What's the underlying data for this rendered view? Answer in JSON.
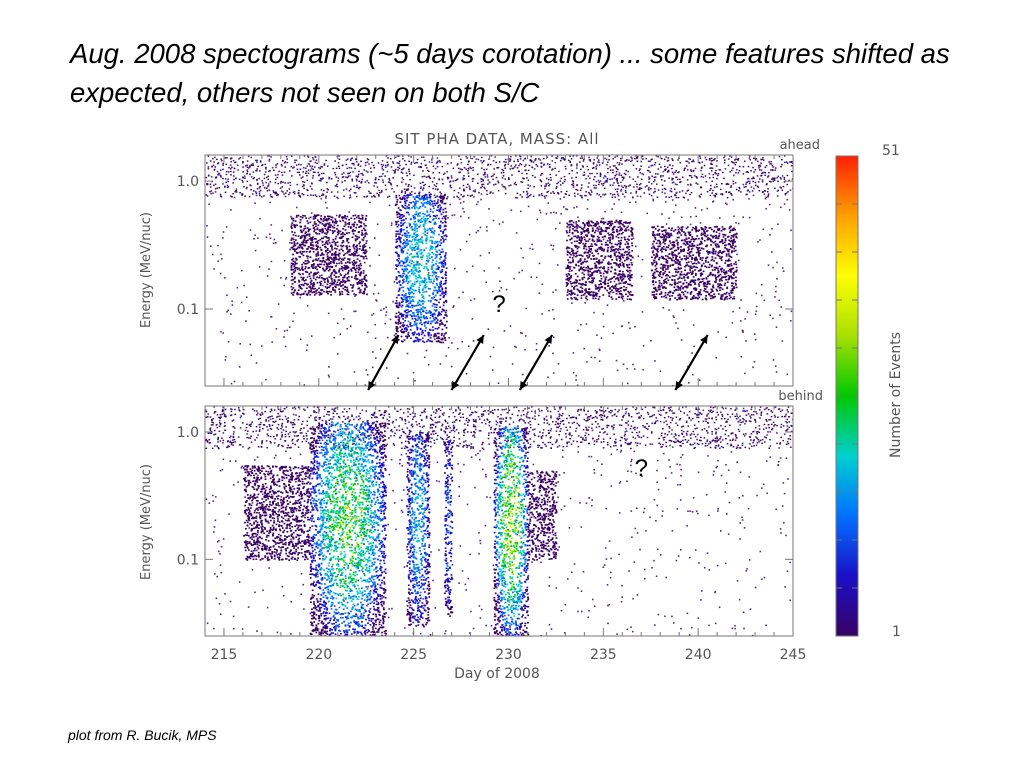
{
  "slide": {
    "title": "Aug. 2008 spectograms (~5 days corotation) ... some features shifted as expected, others not seen on both S/C",
    "caption": "plot from R. Bucik, MPS"
  },
  "chart_data": {
    "type": "heatmap",
    "title": "SIT PHA DATA, MASS: All",
    "xlabel": "Day of 2008",
    "xlim": [
      214,
      245
    ],
    "xticks": [
      "215",
      "220",
      "225",
      "230",
      "235",
      "240",
      "245"
    ],
    "colorbar": {
      "label": "Number of Events",
      "min": 1,
      "max": 51,
      "min_label": "1",
      "max_label": "51",
      "colors": [
        "#3a0064",
        "#1a10c8",
        "#0070ff",
        "#00d0d0",
        "#00c800",
        "#a8e000",
        "#ffff00",
        "#ffa000",
        "#ff2000"
      ]
    },
    "panels": [
      {
        "name": "ahead",
        "ylabel": "Energy (MeV/nuc)",
        "yscale": "log",
        "ylim": [
          0.025,
          1.6
        ],
        "yticks": [
          "1.0",
          "0.1"
        ],
        "features": [
          {
            "start_day": 224.0,
            "end_day": 226.7,
            "energy_low": 0.055,
            "energy_high": 0.8,
            "peak_counts": 25
          },
          {
            "start_day": 218.5,
            "end_day": 222.5,
            "energy_low": 0.13,
            "energy_high": 0.55,
            "peak_counts": 4
          },
          {
            "start_day": 233.0,
            "end_day": 236.5,
            "energy_low": 0.12,
            "energy_high": 0.5,
            "peak_counts": 3
          },
          {
            "start_day": 237.5,
            "end_day": 242.0,
            "energy_low": 0.12,
            "energy_high": 0.45,
            "peak_counts": 2
          }
        ],
        "annotations": [
          {
            "text": "?",
            "day": 229.5,
            "energy": 0.095
          }
        ]
      },
      {
        "name": "behind",
        "ylabel": "Energy (MeV/nuc)",
        "yscale": "log",
        "ylim": [
          0.025,
          1.6
        ],
        "yticks": [
          "1.0",
          "0.1"
        ],
        "features": [
          {
            "start_day": 219.5,
            "end_day": 223.5,
            "energy_low": 0.025,
            "energy_high": 1.2,
            "peak_counts": 35
          },
          {
            "start_day": 216.0,
            "end_day": 219.5,
            "energy_low": 0.1,
            "energy_high": 0.55,
            "peak_counts": 4
          },
          {
            "start_day": 224.6,
            "end_day": 225.8,
            "energy_low": 0.03,
            "energy_high": 1.0,
            "peak_counts": 22
          },
          {
            "start_day": 226.6,
            "end_day": 227.0,
            "energy_low": 0.035,
            "energy_high": 0.9,
            "peak_counts": 15
          },
          {
            "start_day": 229.2,
            "end_day": 231.0,
            "energy_low": 0.025,
            "energy_high": 1.1,
            "peak_counts": 40
          },
          {
            "start_day": 231.0,
            "end_day": 232.5,
            "energy_low": 0.1,
            "energy_high": 0.5,
            "peak_counts": 3
          }
        ],
        "annotations": [
          {
            "text": "?",
            "day": 237.0,
            "energy": 0.45
          }
        ]
      }
    ],
    "arrows": [
      {
        "from_day": 222.6,
        "to_day": 224.2
      },
      {
        "from_day": 227.0,
        "to_day": 228.7
      },
      {
        "from_day": 230.6,
        "to_day": 232.3
      },
      {
        "from_day": 238.8,
        "to_day": 240.5
      }
    ]
  }
}
